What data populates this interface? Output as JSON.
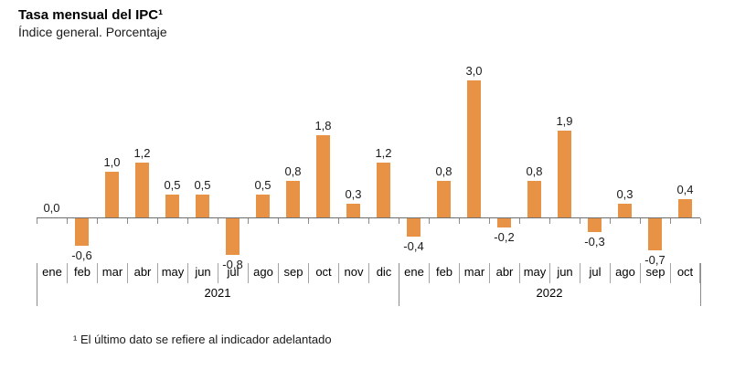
{
  "header": {
    "title": "Tasa mensual del IPC¹",
    "subtitle": "Índice general. Porcentaje"
  },
  "footnote": "¹ El último dato se refiere al indicador adelantado",
  "chart_data": {
    "type": "bar",
    "title": "Tasa mensual del IPC¹",
    "subtitle": "Índice general. Porcentaje",
    "xlabel": "",
    "ylabel": "Porcentaje",
    "ylim": [
      -0.8,
      3.0
    ],
    "grid": false,
    "legend": "none",
    "bar_color": "#E89245",
    "decimal_separator": ",",
    "groups": [
      {
        "year": "2021",
        "categories": [
          "ene",
          "feb",
          "mar",
          "abr",
          "may",
          "jun",
          "jul",
          "ago",
          "sep",
          "oct",
          "nov",
          "dic"
        ],
        "values": [
          0.0,
          -0.6,
          1.0,
          1.2,
          0.5,
          0.5,
          -0.8,
          0.5,
          0.8,
          1.8,
          0.3,
          1.2
        ],
        "labels": [
          "0,0",
          "-0,6",
          "1,0",
          "1,2",
          "0,5",
          "0,5",
          "-0,8",
          "0,5",
          "0,8",
          "1,8",
          "0,3",
          "1,2"
        ]
      },
      {
        "year": "2022",
        "categories": [
          "ene",
          "feb",
          "mar",
          "abr",
          "may",
          "jun",
          "jul",
          "ago",
          "sep",
          "oct"
        ],
        "values": [
          -0.4,
          0.8,
          3.0,
          -0.2,
          0.8,
          1.9,
          -0.3,
          0.3,
          -0.7,
          0.4
        ],
        "labels": [
          "-0,4",
          "0,8",
          "3,0",
          "-0,2",
          "0,8",
          "1,9",
          "-0,3",
          "0,3",
          "-0,7",
          "0,4"
        ]
      }
    ]
  }
}
